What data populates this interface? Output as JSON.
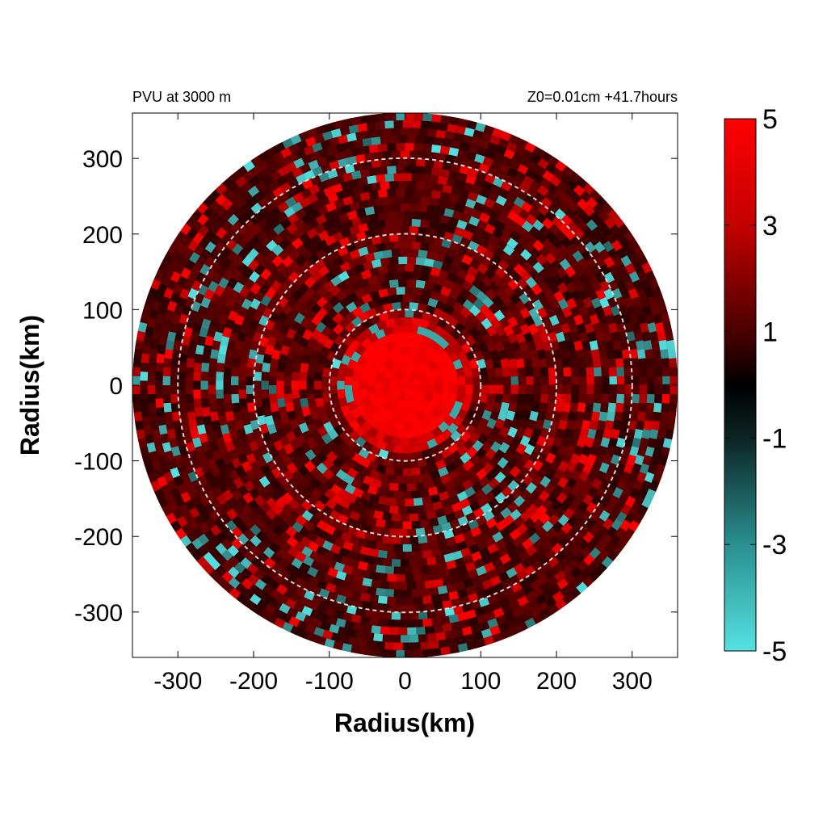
{
  "chart_data": {
    "type": "heatmap",
    "title_left": "PVU at  3000 m",
    "title_right": "Z0=0.01cm  +41.7hours",
    "xlabel": "Radius(km)",
    "ylabel": "Radius(km)",
    "xlim": [
      -360,
      360
    ],
    "ylim": [
      -360,
      360
    ],
    "x_ticks": [
      -300,
      -200,
      -100,
      0,
      100,
      200,
      300
    ],
    "y_ticks": [
      -300,
      -200,
      -100,
      0,
      100,
      200,
      300
    ],
    "x_tick_labels": [
      "-300",
      "-200",
      "-100",
      "0",
      "100",
      "200",
      "300"
    ],
    "y_tick_labels": [
      "300",
      "200",
      "100",
      "0",
      "-100",
      "-200",
      "-300"
    ],
    "domain_radius_km": 360,
    "reference_circles_km": [
      100,
      200,
      300
    ],
    "colorbar": {
      "range": [
        -5,
        5
      ],
      "tick_labels": [
        "5",
        "3",
        "1",
        "-1",
        "-3",
        "-5"
      ],
      "tick_values": [
        5,
        3,
        1,
        -1,
        -3,
        -5
      ],
      "colors": {
        "min": "#55e1e1",
        "mid": "#000000",
        "max": "#ff0000"
      }
    },
    "field_description_values": {
      "core_radius_km": 75,
      "core_pvu": 5
    }
  }
}
